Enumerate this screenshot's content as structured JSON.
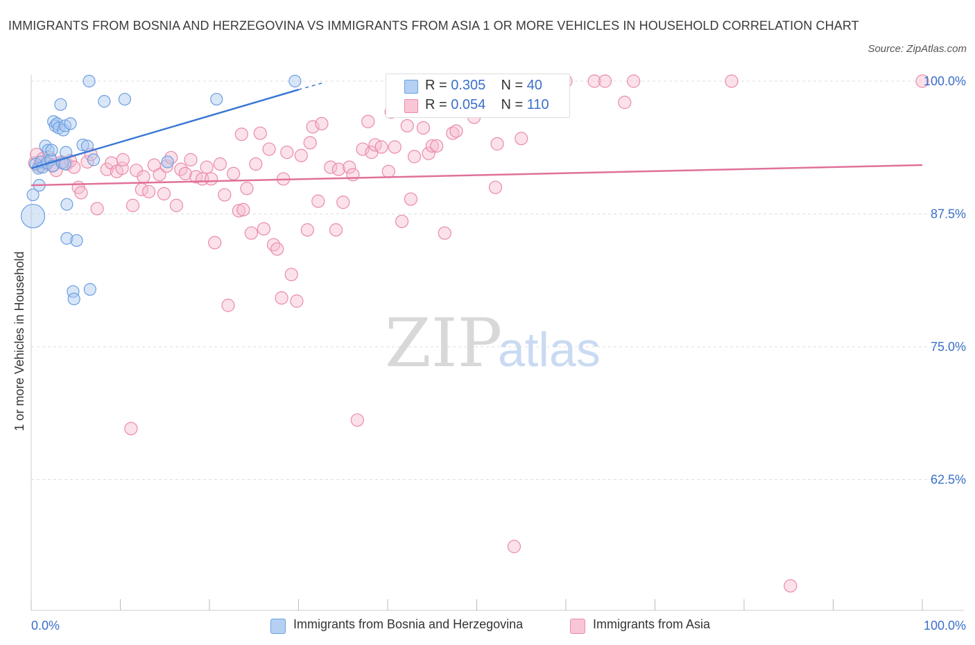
{
  "title": "IMMIGRANTS FROM BOSNIA AND HERZEGOVINA VS IMMIGRANTS FROM ASIA 1 OR MORE VEHICLES IN HOUSEHOLD CORRELATION CHART",
  "source": "Source: ZipAtlas.com",
  "watermark": {
    "zip": "ZIP",
    "atlas": "atlas"
  },
  "legend_top": [
    {
      "r_label": "R =",
      "r_value": "0.305",
      "n_label": "N =",
      "n_value": "40"
    },
    {
      "r_label": "R =",
      "r_value": "0.054",
      "n_label": "N =",
      "n_value": "110"
    }
  ],
  "colors": {
    "blue_fill": "#a9c8f0",
    "blue_stroke": "#6a9ee0",
    "blue_line": "#3a78d4",
    "pink_fill": "#f7bdd0",
    "pink_stroke": "#e98aa9",
    "pink_line": "#e0709a",
    "tick_text": "#3a6fc8",
    "grid": "#dddddd"
  },
  "chart_data": {
    "type": "scatter",
    "title": "IMMIGRANTS FROM BOSNIA AND HERZEGOVINA VS IMMIGRANTS FROM ASIA 1 OR MORE VEHICLES IN HOUSEHOLD CORRELATION CHART",
    "xlabel": "",
    "ylabel": "1 or more Vehicles in Household",
    "xlim": [
      0,
      100
    ],
    "ylim": [
      50,
      101
    ],
    "x_tick_labels": [
      "0.0%",
      "100.0%"
    ],
    "y_ticks": [
      62.5,
      75.0,
      87.5,
      100.0
    ],
    "y_tick_labels": [
      "62.5%",
      "75.0%",
      "87.5%",
      "100.0%"
    ],
    "grid": true,
    "legend_position": "bottom",
    "series": [
      {
        "name": "Immigrants from Bosnia and Herzegovina",
        "color": "#6a9ee0",
        "trend": {
          "x": [
            0,
            30
          ],
          "y": [
            91.8,
            99.2
          ],
          "dashed_to": [
            33,
            99.9
          ]
        },
        "points": [
          [
            0.2,
            89.3
          ],
          [
            0.2,
            87.3
          ],
          [
            0.5,
            92.2
          ],
          [
            0.8,
            91.8
          ],
          [
            0.9,
            90.2
          ],
          [
            1.1,
            92.4
          ],
          [
            1.3,
            91.9
          ],
          [
            1.6,
            93.9
          ],
          [
            1.8,
            92.3
          ],
          [
            1.9,
            93.5
          ],
          [
            2.2,
            92.6
          ],
          [
            2.3,
            93.5
          ],
          [
            2.4,
            92.0
          ],
          [
            2.5,
            96.2
          ],
          [
            2.7,
            95.8
          ],
          [
            2.9,
            96.0
          ],
          [
            3.1,
            95.6
          ],
          [
            3.3,
            97.8
          ],
          [
            3.5,
            92.3
          ],
          [
            3.6,
            95.4
          ],
          [
            3.8,
            95.8
          ],
          [
            3.8,
            92.2
          ],
          [
            3.9,
            93.3
          ],
          [
            4.0,
            85.2
          ],
          [
            4.0,
            88.4
          ],
          [
            4.4,
            96.0
          ],
          [
            4.7,
            80.2
          ],
          [
            4.8,
            79.5
          ],
          [
            5.1,
            85.0
          ],
          [
            5.8,
            94.0
          ],
          [
            6.3,
            93.9
          ],
          [
            6.5,
            100.0
          ],
          [
            6.6,
            80.4
          ],
          [
            7.0,
            92.6
          ],
          [
            8.2,
            98.1
          ],
          [
            10.5,
            98.3
          ],
          [
            15.3,
            92.4
          ],
          [
            20.8,
            98.3
          ],
          [
            29.6,
            100.0
          ]
        ]
      },
      {
        "name": "Immigrants from Asia",
        "color": "#e98aa9",
        "trend": {
          "x": [
            0,
            100
          ],
          "y": [
            90.2,
            92.1
          ]
        },
        "points": [
          [
            0.4,
            92.3
          ],
          [
            0.6,
            93.1
          ],
          [
            0.9,
            92.0
          ],
          [
            1.3,
            92.7
          ],
          [
            1.7,
            92.2
          ],
          [
            2.1,
            92.8
          ],
          [
            2.5,
            92.1
          ],
          [
            2.8,
            91.6
          ],
          [
            3.4,
            92.4
          ],
          [
            4.0,
            92.2
          ],
          [
            4.4,
            92.5
          ],
          [
            4.8,
            91.9
          ],
          [
            5.3,
            90.0
          ],
          [
            5.6,
            89.5
          ],
          [
            6.3,
            92.4
          ],
          [
            6.7,
            93.1
          ],
          [
            7.4,
            88.0
          ],
          [
            8.5,
            91.7
          ],
          [
            9.0,
            92.3
          ],
          [
            9.6,
            91.5
          ],
          [
            10.2,
            91.8
          ],
          [
            10.3,
            92.6
          ],
          [
            11.2,
            67.3
          ],
          [
            11.4,
            88.3
          ],
          [
            11.8,
            91.6
          ],
          [
            12.4,
            89.8
          ],
          [
            12.6,
            91.0
          ],
          [
            13.2,
            89.6
          ],
          [
            13.8,
            92.1
          ],
          [
            14.4,
            91.2
          ],
          [
            14.9,
            89.4
          ],
          [
            15.2,
            92.0
          ],
          [
            15.7,
            92.8
          ],
          [
            16.3,
            88.3
          ],
          [
            16.8,
            91.7
          ],
          [
            17.3,
            91.3
          ],
          [
            17.9,
            92.6
          ],
          [
            18.5,
            91.0
          ],
          [
            19.2,
            90.8
          ],
          [
            19.7,
            91.9
          ],
          [
            20.2,
            90.8
          ],
          [
            20.6,
            84.8
          ],
          [
            21.2,
            92.2
          ],
          [
            21.7,
            89.3
          ],
          [
            22.1,
            78.9
          ],
          [
            22.7,
            91.3
          ],
          [
            23.3,
            87.8
          ],
          [
            23.6,
            95.0
          ],
          [
            23.8,
            87.9
          ],
          [
            24.2,
            89.9
          ],
          [
            24.7,
            85.7
          ],
          [
            25.2,
            92.2
          ],
          [
            25.7,
            95.1
          ],
          [
            26.1,
            86.1
          ],
          [
            26.7,
            93.6
          ],
          [
            27.2,
            84.6
          ],
          [
            27.6,
            84.2
          ],
          [
            28.1,
            79.6
          ],
          [
            28.3,
            90.8
          ],
          [
            28.7,
            93.3
          ],
          [
            29.2,
            81.8
          ],
          [
            29.8,
            79.3
          ],
          [
            30.3,
            93.0
          ],
          [
            31.0,
            86.0
          ],
          [
            31.3,
            94.2
          ],
          [
            31.6,
            95.7
          ],
          [
            32.2,
            88.7
          ],
          [
            32.6,
            96.0
          ],
          [
            33.6,
            91.9
          ],
          [
            34.2,
            86.0
          ],
          [
            34.5,
            91.7
          ],
          [
            35.0,
            88.6
          ],
          [
            35.7,
            91.9
          ],
          [
            36.1,
            91.2
          ],
          [
            36.6,
            68.1
          ],
          [
            37.2,
            93.6
          ],
          [
            37.8,
            96.2
          ],
          [
            38.2,
            93.3
          ],
          [
            38.6,
            94.0
          ],
          [
            39.3,
            93.8
          ],
          [
            40.1,
            91.5
          ],
          [
            40.4,
            97.1
          ],
          [
            40.8,
            93.8
          ],
          [
            41.6,
            86.8
          ],
          [
            42.2,
            95.8
          ],
          [
            42.6,
            88.9
          ],
          [
            43.0,
            92.9
          ],
          [
            44.0,
            95.6
          ],
          [
            44.6,
            93.2
          ],
          [
            45.0,
            93.9
          ],
          [
            45.5,
            93.9
          ],
          [
            46.4,
            85.7
          ],
          [
            47.0,
            97.2
          ],
          [
            47.3,
            95.1
          ],
          [
            47.7,
            95.3
          ],
          [
            49.7,
            96.6
          ],
          [
            52.1,
            90.0
          ],
          [
            52.3,
            94.1
          ],
          [
            54.2,
            56.2
          ],
          [
            55.0,
            94.6
          ],
          [
            57.5,
            100.0
          ],
          [
            60.0,
            100.0
          ],
          [
            63.2,
            100.0
          ],
          [
            64.4,
            100.0
          ],
          [
            66.6,
            98.0
          ],
          [
            67.6,
            100.0
          ],
          [
            78.6,
            100.0
          ],
          [
            85.2,
            52.5
          ],
          [
            100.0,
            100.0
          ]
        ]
      }
    ]
  },
  "legend_bottom": [
    "Immigrants from Bosnia and Herzegovina",
    "Immigrants from Asia"
  ]
}
